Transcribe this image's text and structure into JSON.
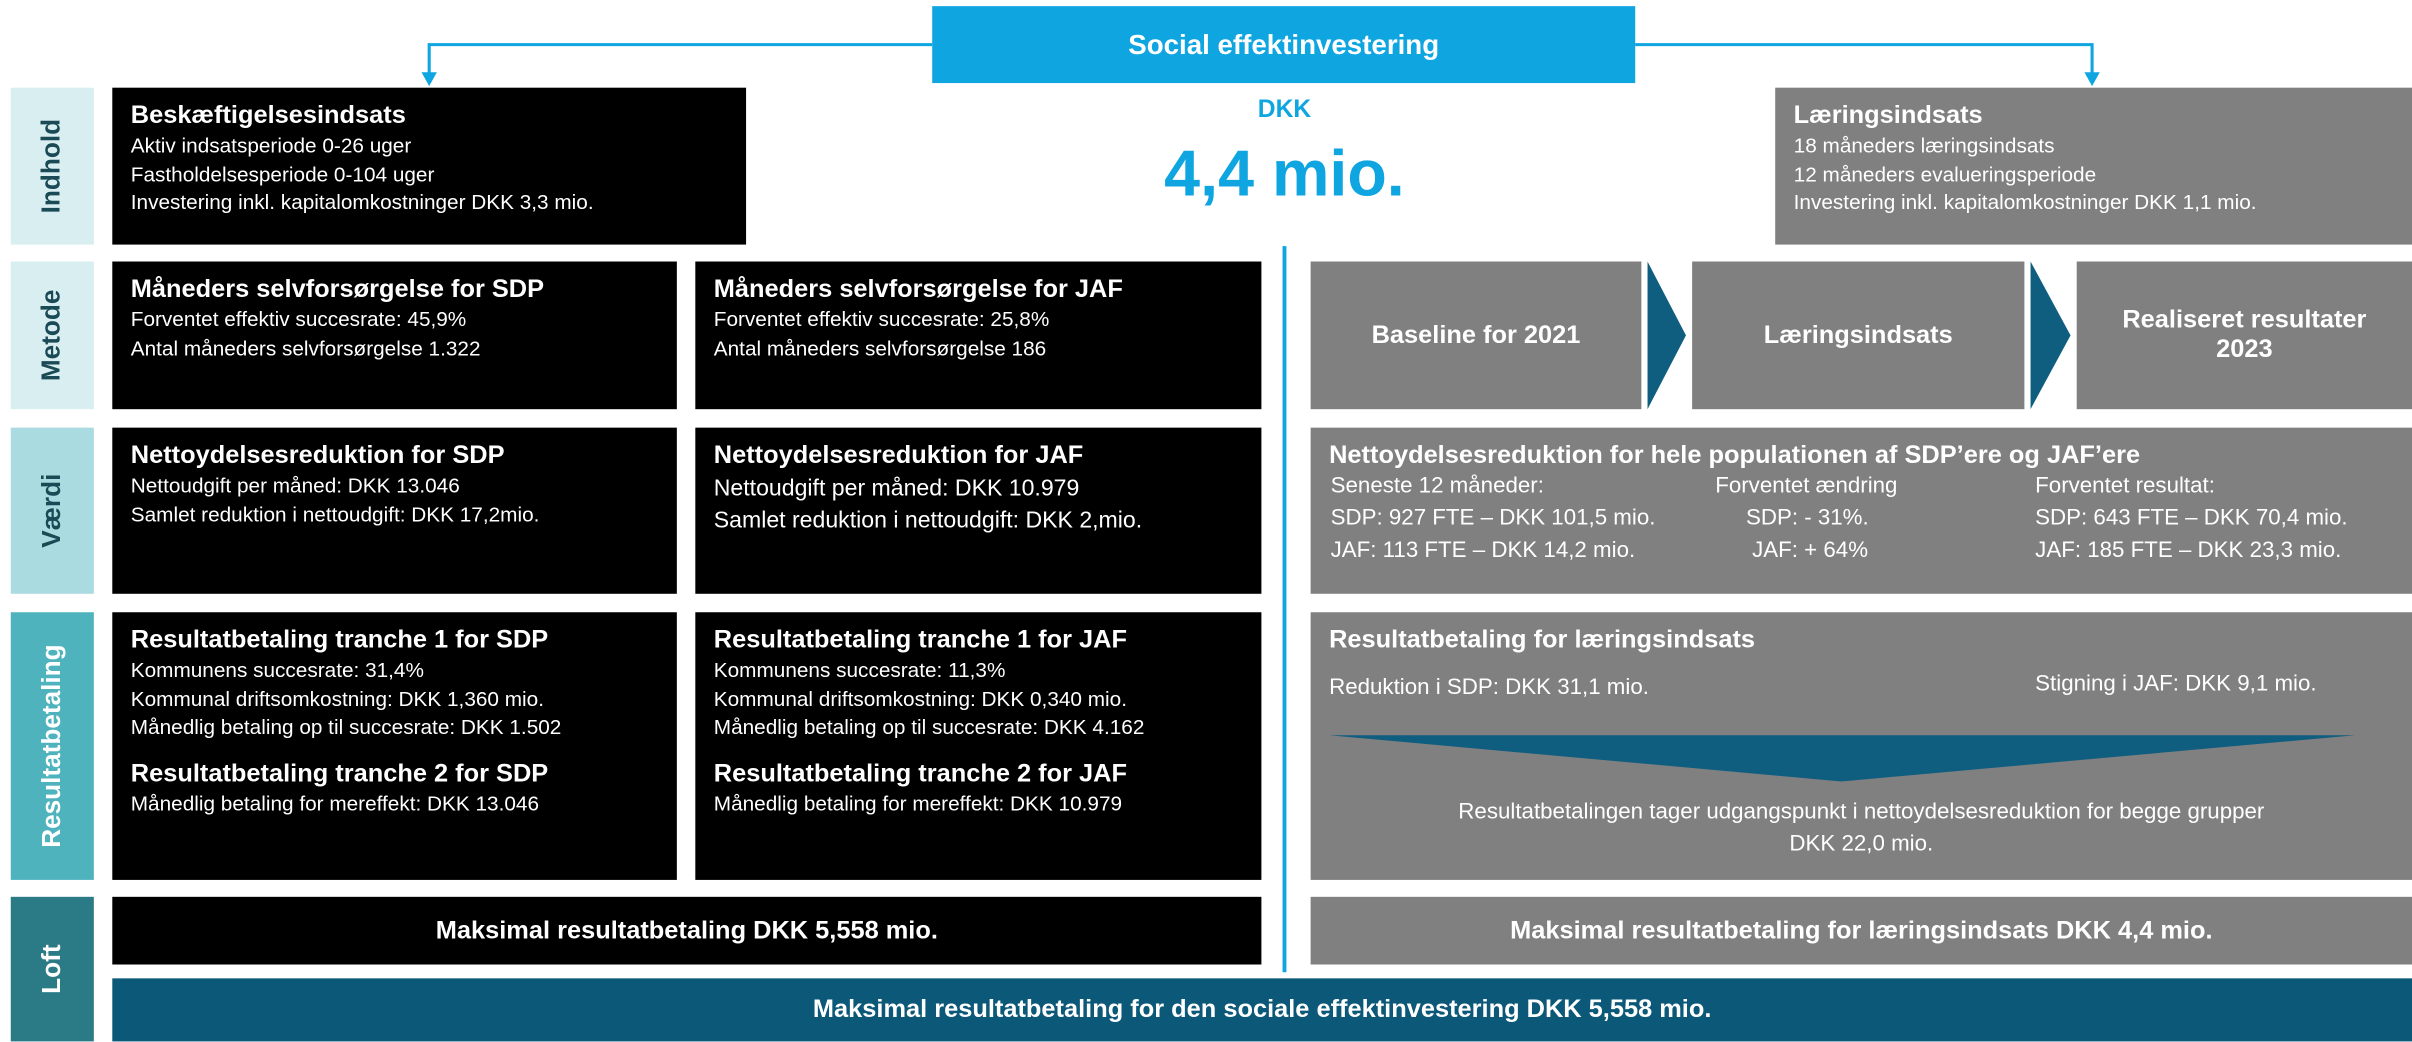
{
  "header": {
    "title": "Social effektinvestering"
  },
  "rows": [
    "Indhold",
    "Metode",
    "Værdi",
    "Resultatbetaling",
    "Loft"
  ],
  "center": {
    "currency": "DKK",
    "amount": "4,4 mio."
  },
  "indhold": {
    "left": {
      "title": "Beskæftigelsesindsats",
      "lines": [
        "Aktiv indsatsperiode 0-26 uger",
        "Fastholdelsesperiode 0-104 uger",
        "Investering inkl. kapitalomkostninger DKK 3,3 mio."
      ]
    },
    "right": {
      "title": "Læringsindsats",
      "lines": [
        "18 måneders læringsindsats",
        "12 måneders evalueringsperiode",
        "Investering inkl. kapitalomkostninger DKK 1,1 mio."
      ]
    }
  },
  "metode": {
    "left": {
      "title": "Måneders selvforsørgelse for SDP",
      "lines": [
        "Forventet effektiv succesrate: 45,9%",
        "Antal måneders selvforsørgelse 1.322"
      ]
    },
    "middle": {
      "title": "Måneders selvforsørgelse for JAF",
      "lines": [
        "Forventet effektiv succesrate: 25,8%",
        "Antal måneders selvforsørgelse 186"
      ]
    },
    "steps": [
      "Baseline for 2021",
      "Læringsindsats",
      "Realiseret resultater 2023"
    ]
  },
  "vaerdi": {
    "left": {
      "title": "Nettoydelsesreduktion for SDP",
      "lines": [
        "Nettoudgift per måned: DKK 13.046",
        "Samlet reduktion i nettoudgift: DKK 17,2mio."
      ]
    },
    "middle": {
      "title": "Nettoydelsesreduktion for JAF",
      "lines": [
        "Nettoudgift per måned: DKK 10.979",
        "Samlet reduktion i nettoudgift: DKK 2,mio."
      ]
    },
    "right": {
      "title": "Nettoydelsesreduktion for hele populationen af SDP’ere og JAF’ere",
      "columns": [
        [
          "Seneste 12 måneder:",
          "SDP: 927 FTE – DKK 101,5 mio.",
          "JAF: 113 FTE – DKK 14,2 mio."
        ],
        [
          "Forventet ændring",
          "SDP: - 31%.",
          "JAF: + 64%"
        ],
        [
          "Forventet resultat:",
          "SDP: 643 FTE – DKK 70,4 mio.",
          "JAF: 185 FTE – DKK 23,3 mio."
        ]
      ]
    }
  },
  "resultat": {
    "left": [
      {
        "title": "Resultatbetaling tranche 1 for  SDP",
        "lines": [
          "Kommunens succesrate: 31,4%",
          "Kommunal driftsomkostning: DKK 1,360 mio.",
          "Månedlig betaling op til succesrate: DKK 1.502"
        ]
      },
      {
        "title": "Resultatbetaling tranche 2 for  SDP",
        "lines": [
          "Månedlig betaling for mereffekt: DKK 13.046"
        ]
      }
    ],
    "middle": [
      {
        "title": "Resultatbetaling tranche 1 for JAF",
        "lines": [
          "Kommunens succesrate: 11,3%",
          "Kommunal driftsomkostning: DKK 0,340 mio.",
          "Månedlig betaling op til succesrate: DKK 4.162"
        ]
      },
      {
        "title": "Resultatbetaling tranche 2 for  JAF",
        "lines": [
          "Månedlig betaling for mereffekt: DKK 10.979"
        ]
      }
    ],
    "right": {
      "title": "Resultatbetaling for læringsindsats",
      "left_text": "Reduktion i SDP: DKK 31,1 mio.",
      "right_text": "Stigning i JAF: DKK 9,1 mio.",
      "footer": [
        "Resultatbetalingen tager udgangspunkt i nettoydelsesreduktion for begge grupper",
        "DKK 22,0 mio."
      ]
    }
  },
  "loft": {
    "left": "Maksimal resultatbetaling DKK 5,558 mio.",
    "right": "Maksimal resultatbetaling for læringsindsats DKK 4,4 mio.",
    "total": "Maksimal resultatbetaling for den sociale effektinvestering DKK 5,558 mio."
  }
}
